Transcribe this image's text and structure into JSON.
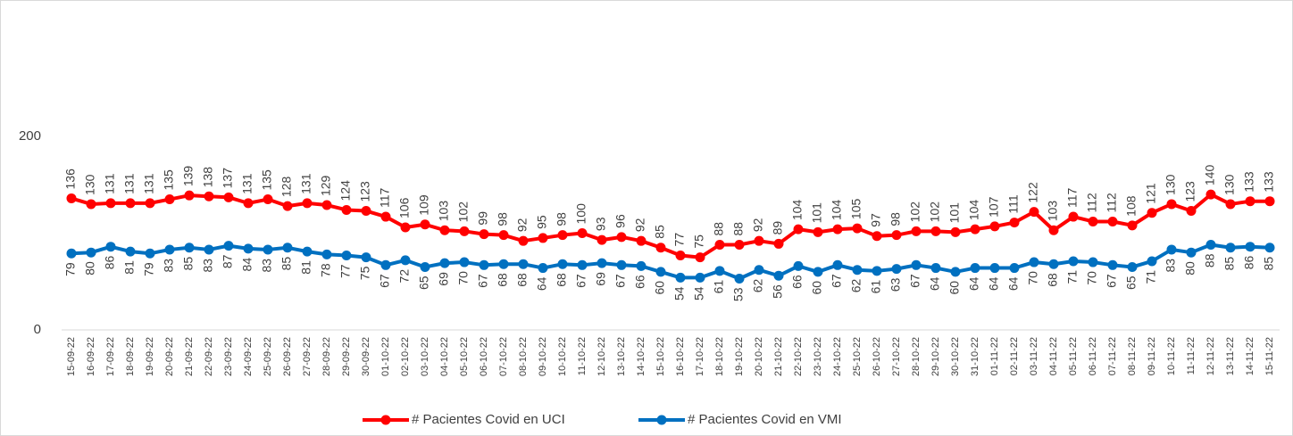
{
  "chart_data": {
    "type": "line",
    "categories": [
      "15-09-22",
      "16-09-22",
      "17-09-22",
      "18-09-22",
      "19-09-22",
      "20-09-22",
      "21-09-22",
      "22-09-22",
      "23-09-22",
      "24-09-22",
      "25-09-22",
      "26-09-22",
      "27-09-22",
      "28-09-22",
      "29-09-22",
      "30-09-22",
      "01-10-22",
      "02-10-22",
      "03-10-22",
      "04-10-22",
      "05-10-22",
      "06-10-22",
      "07-10-22",
      "08-10-22",
      "09-10-22",
      "10-10-22",
      "11-10-22",
      "12-10-22",
      "13-10-22",
      "14-10-22",
      "15-10-22",
      "16-10-22",
      "17-10-22",
      "18-10-22",
      "19-10-22",
      "20-10-22",
      "21-10-22",
      "22-10-22",
      "23-10-22",
      "24-10-22",
      "25-10-22",
      "26-10-22",
      "27-10-22",
      "28-10-22",
      "29-10-22",
      "30-10-22",
      "31-10-22",
      "01-11-22",
      "02-11-22",
      "03-11-22",
      "04-11-22",
      "05-11-22",
      "06-11-22",
      "07-11-22",
      "08-11-22",
      "09-11-22",
      "10-11-22",
      "11-11-22",
      "12-11-22",
      "13-11-22",
      "14-11-22",
      "15-11-22"
    ],
    "series": [
      {
        "name": "# Pacientes Covid en UCI",
        "color": "#ff0000",
        "label_position": "above",
        "values": [
          136,
          130,
          131,
          131,
          131,
          135,
          139,
          138,
          137,
          131,
          135,
          128,
          131,
          129,
          124,
          123,
          117,
          106,
          109,
          103,
          102,
          99,
          98,
          92,
          95,
          98,
          100,
          93,
          96,
          92,
          85,
          77,
          75,
          88,
          88,
          92,
          89,
          104,
          101,
          104,
          105,
          97,
          98,
          102,
          102,
          101,
          104,
          107,
          111,
          122,
          103,
          117,
          112,
          112,
          108,
          121,
          130,
          123,
          140,
          130,
          133,
          133
        ]
      },
      {
        "name": "# Pacientes Covid en VMI",
        "color": "#0070c0",
        "label_position": "below",
        "values": [
          79,
          80,
          86,
          81,
          79,
          83,
          85,
          83,
          87,
          84,
          83,
          85,
          81,
          78,
          77,
          75,
          67,
          72,
          65,
          69,
          70,
          67,
          68,
          68,
          64,
          68,
          67,
          69,
          67,
          66,
          60,
          54,
          54,
          61,
          53,
          62,
          56,
          66,
          60,
          67,
          62,
          61,
          63,
          67,
          64,
          60,
          64,
          64,
          64,
          70,
          68,
          71,
          70,
          67,
          65,
          71,
          83,
          80,
          88,
          85,
          86,
          85
        ]
      }
    ],
    "ylim": [
      0,
      200
    ],
    "yticks": [
      0,
      200
    ],
    "grid": false,
    "legend": "bottom"
  }
}
